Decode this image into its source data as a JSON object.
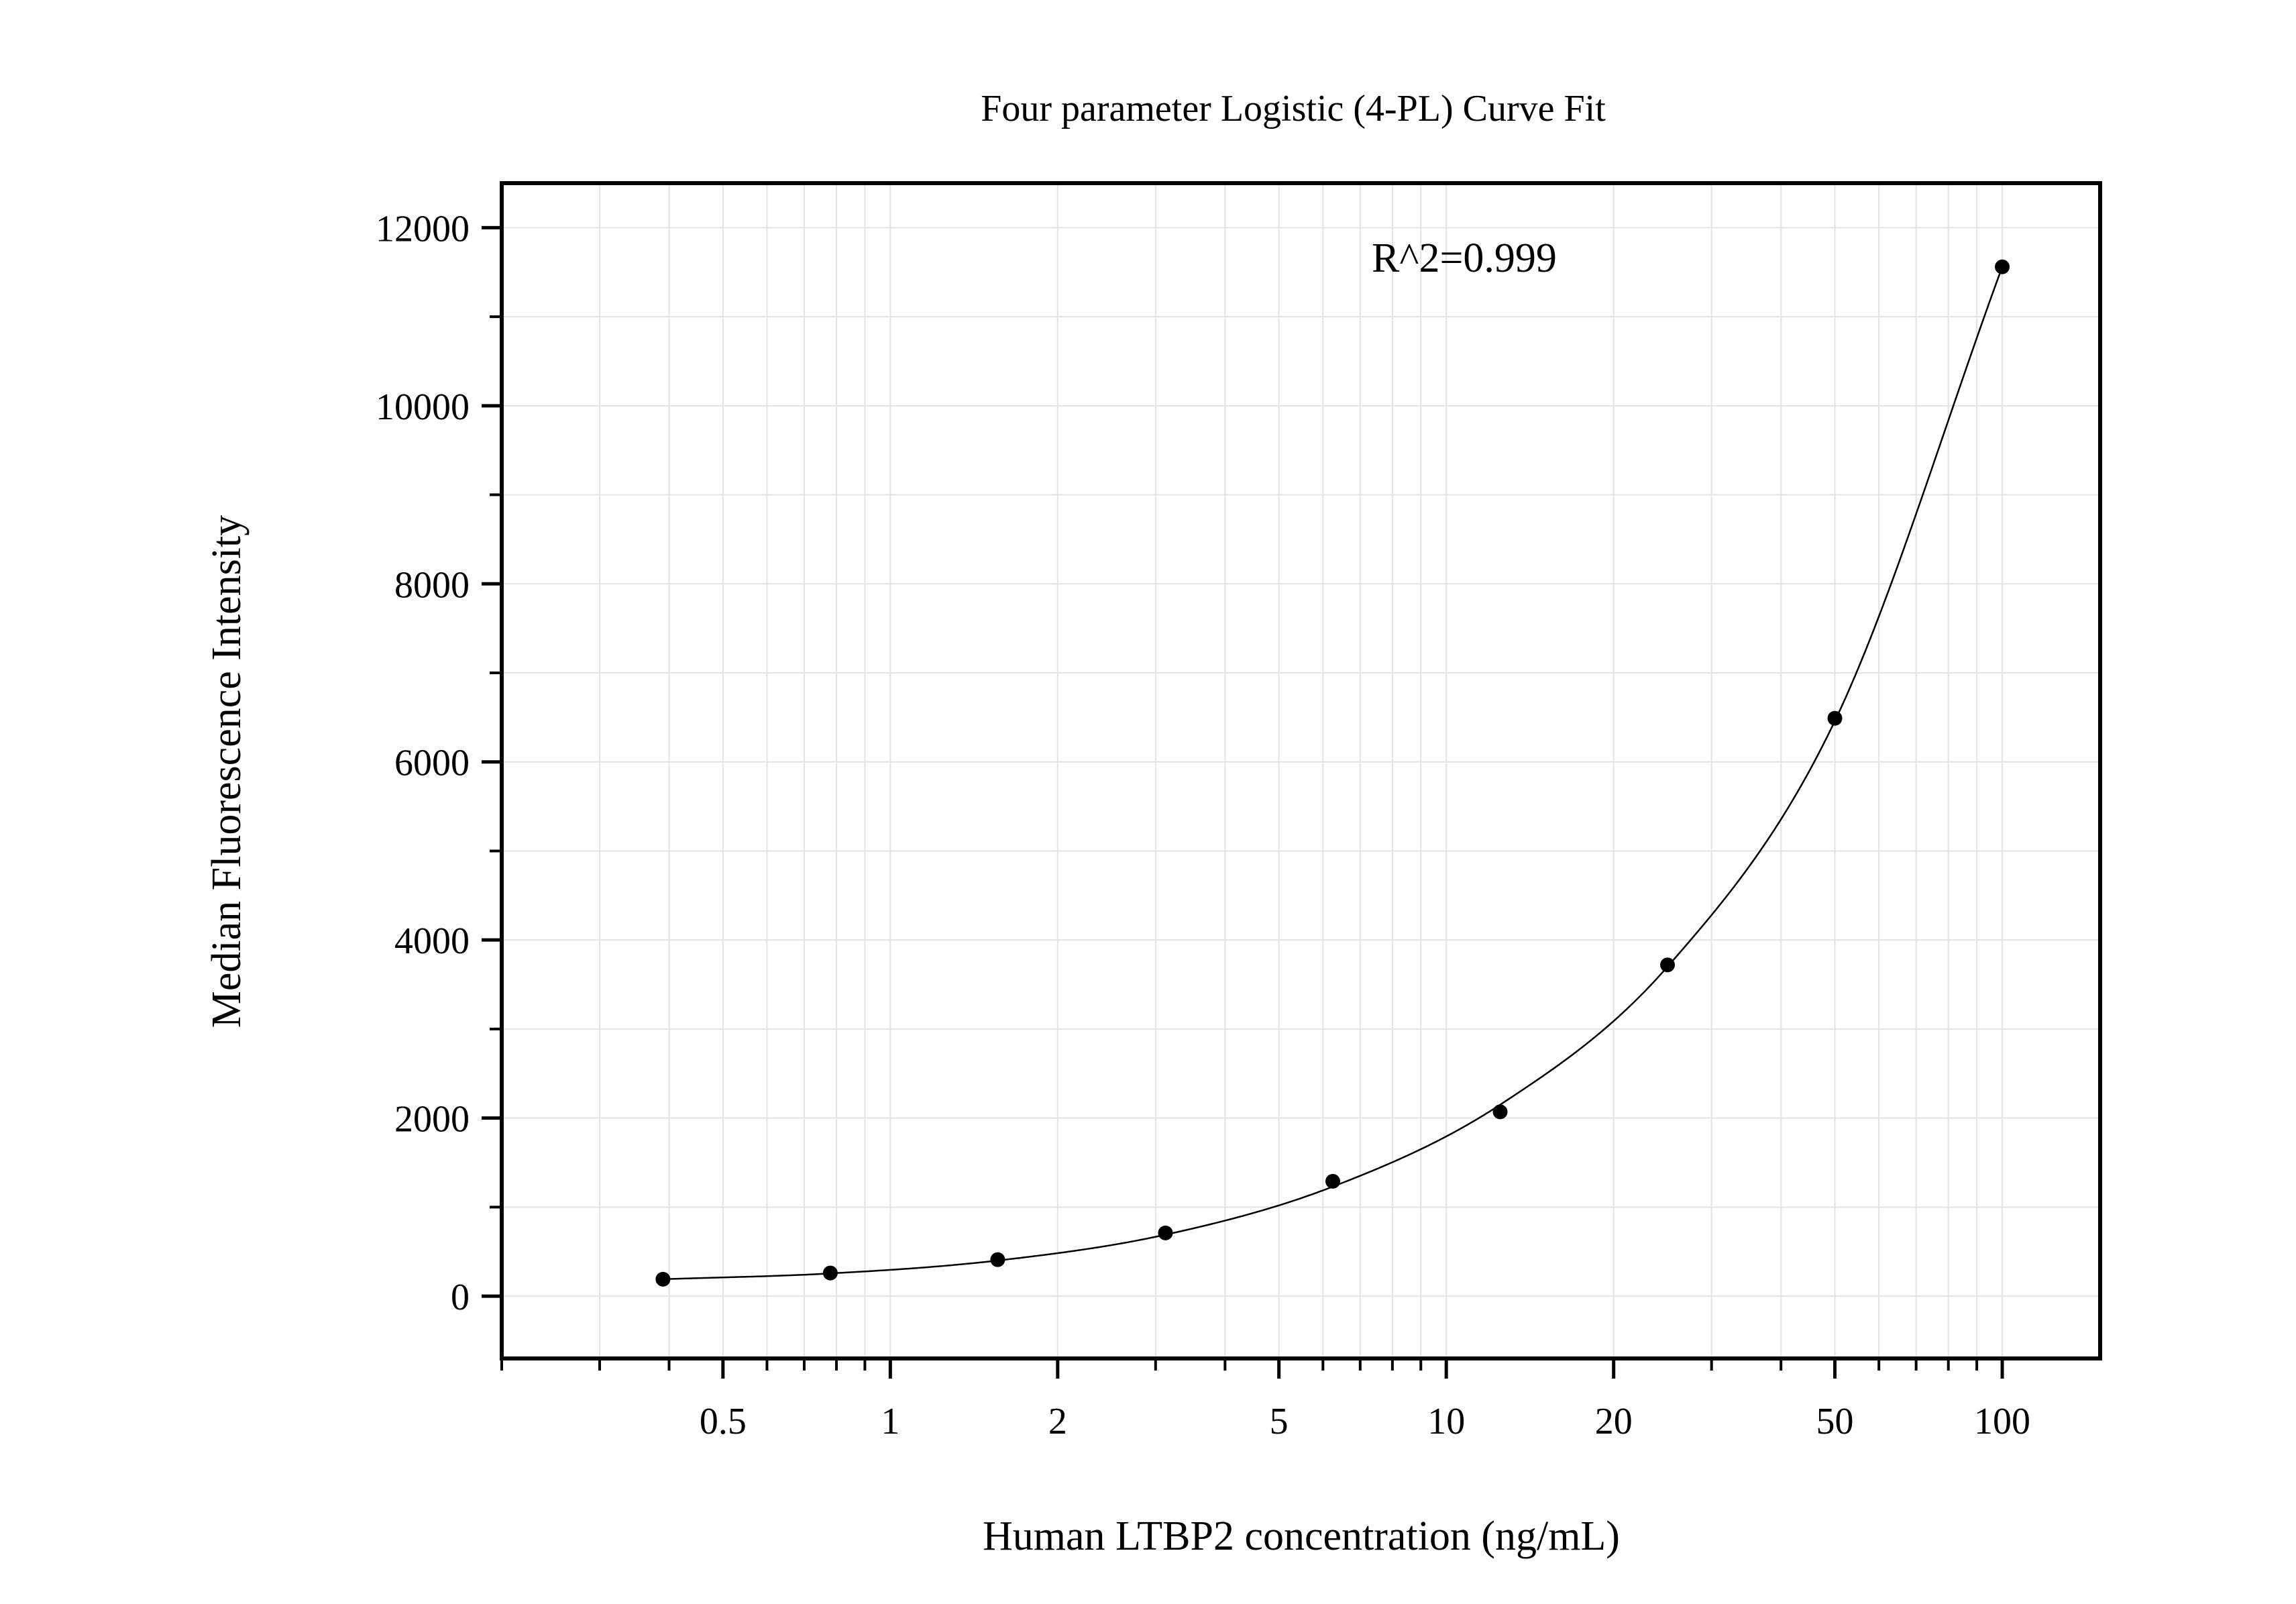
{
  "chart_data": {
    "type": "scatter",
    "title": "Four parameter Logistic (4-PL) Curve Fit",
    "xlabel": "Human LTBP2 concentration (ng/mL)",
    "ylabel": "Median Fluorescence Intensity",
    "annotation": "R^2=0.999",
    "x_scale": "log",
    "xlim": [
      0.2,
      150
    ],
    "ylim": [
      -700,
      12500
    ],
    "x_ticks": [
      {
        "value": 0.5,
        "label": "0.5"
      },
      {
        "value": 1,
        "label": "1"
      },
      {
        "value": 2,
        "label": "2"
      },
      {
        "value": 5,
        "label": "5"
      },
      {
        "value": 10,
        "label": "10"
      },
      {
        "value": 20,
        "label": "20"
      },
      {
        "value": 50,
        "label": "50"
      },
      {
        "value": 100,
        "label": "100"
      }
    ],
    "y_ticks": [
      {
        "value": 0,
        "label": "0"
      },
      {
        "value": 2000,
        "label": "2000"
      },
      {
        "value": 4000,
        "label": "4000"
      },
      {
        "value": 6000,
        "label": "6000"
      },
      {
        "value": 8000,
        "label": "8000"
      },
      {
        "value": 10000,
        "label": "10000"
      },
      {
        "value": 12000,
        "label": "12000"
      }
    ],
    "grid": true,
    "series": [
      {
        "type": "scatter",
        "points": [
          {
            "x": 0.39,
            "y": 190
          },
          {
            "x": 0.78,
            "y": 260
          },
          {
            "x": 1.56,
            "y": 410
          },
          {
            "x": 3.125,
            "y": 710
          },
          {
            "x": 6.25,
            "y": 1290
          },
          {
            "x": 12.5,
            "y": 2070
          },
          {
            "x": 25,
            "y": 3720
          },
          {
            "x": 50,
            "y": 6490
          },
          {
            "x": 100,
            "y": 11560
          }
        ]
      },
      {
        "type": "line",
        "fit": "4-PL",
        "points": [
          {
            "x": 0.39,
            "y": 190
          },
          {
            "x": 0.78,
            "y": 255
          },
          {
            "x": 1.56,
            "y": 400
          },
          {
            "x": 3.125,
            "y": 690
          },
          {
            "x": 6.25,
            "y": 1230
          },
          {
            "x": 12.5,
            "y": 2150
          },
          {
            "x": 25,
            "y": 3700
          },
          {
            "x": 50,
            "y": 6460
          },
          {
            "x": 100,
            "y": 11560
          }
        ]
      }
    ]
  }
}
